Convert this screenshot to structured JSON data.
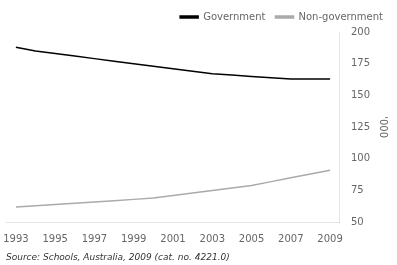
{
  "chart_data": {
    "type": "line",
    "x": [
      1993,
      1994,
      1995,
      1996,
      1997,
      1998,
      1999,
      2000,
      2001,
      2002,
      2003,
      2004,
      2005,
      2006,
      2007,
      2008,
      2009
    ],
    "series": [
      {
        "name": "Government",
        "color": "#000000",
        "values": [
          188,
          185,
          183,
          181,
          179,
          177,
          175,
          173,
          171,
          169,
          167,
          166,
          165,
          164,
          163,
          163,
          163
        ]
      },
      {
        "name": "Non-government",
        "color": "#aaaaaa",
        "values": [
          62,
          63,
          64,
          65,
          66,
          67,
          68,
          69,
          71,
          73,
          75,
          77,
          79,
          82,
          85,
          88,
          91
        ]
      }
    ],
    "xlim": [
      1992.5,
      2009.5
    ],
    "xticks": [
      1993,
      1995,
      1997,
      1999,
      2001,
      2003,
      2005,
      2007,
      2009
    ],
    "ylim": [
      50,
      200
    ],
    "yticks": [
      50,
      75,
      100,
      125,
      150,
      175,
      200
    ],
    "ylabel": "'000",
    "annotations": [
      "Source: Schools, Australia, 2009 (cat. no. 4221.0)"
    ],
    "grid": false,
    "legend": "upper right"
  }
}
